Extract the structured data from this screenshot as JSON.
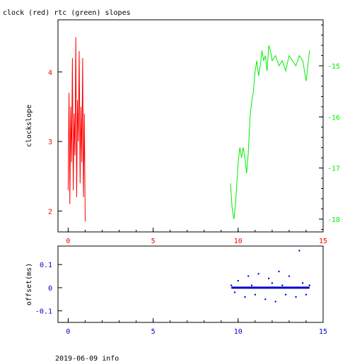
{
  "title": "clock (red) rtc (green) slopes",
  "footer": "2019-06-09 info",
  "colors": {
    "clock": "#ff0000",
    "rtc": "#00ee00",
    "offset": "#0000cc",
    "axis": "#000000"
  },
  "chart_data": [
    {
      "type": "line",
      "title": "clock (red) rtc (green) slopes",
      "xlabel": "",
      "ylabel": "clockslope",
      "xlim": [
        -0.6,
        15
      ],
      "ylim": [
        1.7,
        4.75
      ],
      "y2lim": [
        -18.25,
        -14.1
      ],
      "xticks": [
        0,
        5,
        10,
        15
      ],
      "yticks": [
        2,
        3,
        4
      ],
      "y2ticks": [
        -18,
        -17,
        -16,
        -15
      ],
      "xtick_labels": [
        "0",
        "5",
        "10",
        "15"
      ],
      "ytick_labels": [
        "2",
        "3",
        "4"
      ],
      "y2tick_labels": [
        "-18",
        "-17",
        "-16",
        "-15"
      ],
      "grid": false,
      "series": [
        {
          "axis": "left",
          "color": "#ff0000",
          "x": [
            0.0,
            0.05,
            0.1,
            0.15,
            0.2,
            0.25,
            0.3,
            0.35,
            0.4,
            0.45,
            0.5,
            0.55,
            0.6,
            0.65,
            0.7,
            0.75,
            0.8,
            0.85,
            0.9,
            0.95,
            1.0
          ],
          "y": [
            2.3,
            3.7,
            2.1,
            3.5,
            2.7,
            4.2,
            2.3,
            3.4,
            2.8,
            4.5,
            2.2,
            3.6,
            3.0,
            4.3,
            2.4,
            3.5,
            2.7,
            4.2,
            2.2,
            3.4,
            1.85
          ]
        },
        {
          "axis": "right",
          "color": "#00ee00",
          "x": [
            9.55,
            9.65,
            9.75,
            9.85,
            10.0,
            10.1,
            10.2,
            10.3,
            10.4,
            10.5,
            10.6,
            10.7,
            10.8,
            10.9,
            11.0,
            11.1,
            11.2,
            11.3,
            11.4,
            11.5,
            11.6,
            11.7,
            11.8,
            11.9,
            12.0,
            12.2,
            12.4,
            12.6,
            12.8,
            13.0,
            13.2,
            13.4,
            13.6,
            13.8,
            14.0,
            14.2
          ],
          "y": [
            -17.3,
            -17.8,
            -18.0,
            -17.7,
            -16.9,
            -16.6,
            -16.8,
            -16.6,
            -16.8,
            -17.1,
            -16.7,
            -16.0,
            -15.7,
            -15.5,
            -15.1,
            -14.9,
            -15.2,
            -15.0,
            -14.7,
            -14.9,
            -14.8,
            -15.1,
            -14.6,
            -14.7,
            -14.9,
            -14.8,
            -15.0,
            -14.9,
            -15.1,
            -14.8,
            -14.9,
            -15.0,
            -14.8,
            -14.9,
            -15.3,
            -14.7
          ]
        }
      ]
    },
    {
      "type": "scatter",
      "xlabel": "",
      "ylabel": "offset(ms)",
      "xlim": [
        -0.6,
        15
      ],
      "ylim": [
        -0.15,
        0.18
      ],
      "xticks": [
        0,
        5,
        10,
        15
      ],
      "yticks": [
        -0.1,
        0,
        0.1
      ],
      "xtick_labels": [
        "0",
        "5",
        "10",
        "15"
      ],
      "ytick_labels": [
        "-0.1",
        "0",
        "0.1"
      ],
      "grid": false,
      "series": [
        {
          "color": "#0000cc",
          "x": [
            9.6,
            9.8,
            10.0,
            10.2,
            10.4,
            10.6,
            10.8,
            11.0,
            11.2,
            11.4,
            11.6,
            11.8,
            12.0,
            12.2,
            12.4,
            12.6,
            12.8,
            13.0,
            13.2,
            13.4,
            13.6,
            13.8,
            14.0,
            14.2
          ],
          "y": [
            0.01,
            -0.02,
            0.03,
            0.0,
            -0.04,
            0.05,
            0.01,
            -0.03,
            0.06,
            0.0,
            -0.05,
            0.04,
            0.02,
            -0.06,
            0.07,
            0.01,
            -0.03,
            0.05,
            0.0,
            -0.04,
            0.16,
            0.02,
            -0.03,
            0.01
          ]
        }
      ]
    }
  ]
}
